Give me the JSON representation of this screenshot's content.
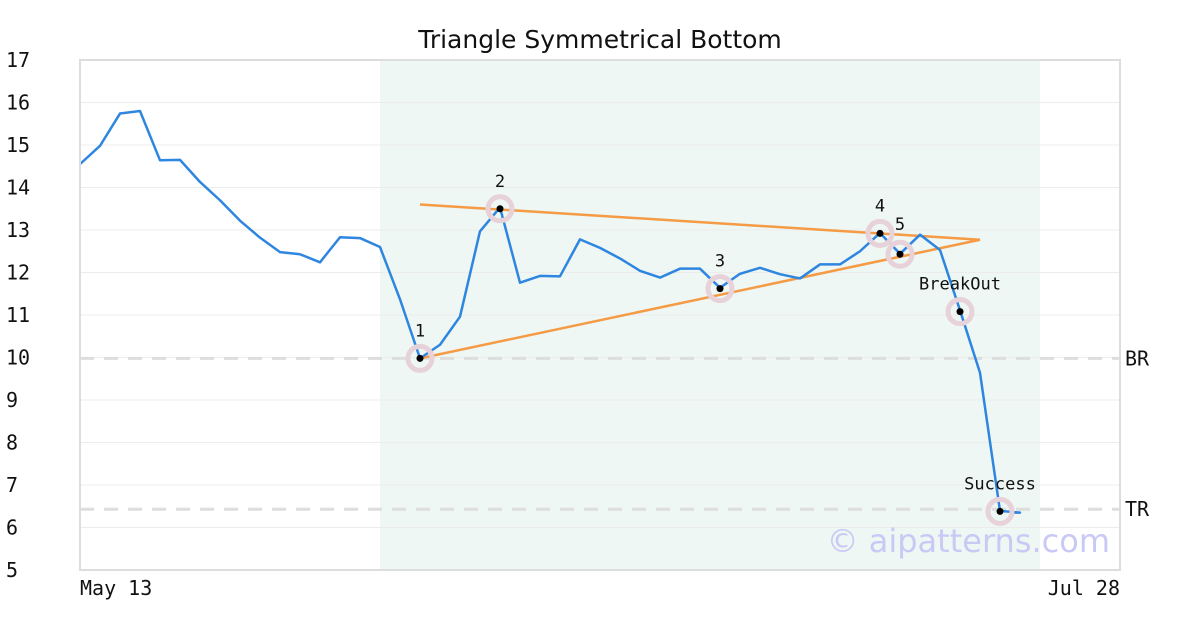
{
  "chart_data": {
    "type": "line",
    "title": "Triangle Symmetrical Bottom",
    "watermark": "© aipatterns.com",
    "xlabel": "",
    "ylabel": "",
    "ylim": [
      5,
      17
    ],
    "yticks": [
      5,
      6,
      7,
      8,
      9,
      10,
      11,
      12,
      13,
      14,
      15,
      16,
      17
    ],
    "x_tick_labels": [
      "May 13",
      "Jul 28"
    ],
    "grid": "horizontal",
    "colors": {
      "price": "#2e86e0",
      "trendline": "#f59a45",
      "pattern_zone": "#eef7f3",
      "level": "#dddddd",
      "marker_ring": "#e7d2d9",
      "marker_dot": "#000000",
      "watermark": "#c9c9f5"
    },
    "series": [
      {
        "values": [
          14.55,
          14.98,
          15.74,
          15.8,
          14.64,
          14.65,
          14.13,
          13.7,
          13.22,
          12.82,
          12.48,
          12.43,
          12.24,
          12.83,
          12.81,
          12.6,
          11.37,
          9.98,
          10.3,
          10.96,
          12.97,
          13.53,
          11.76,
          11.92,
          11.91,
          12.78,
          12.58,
          12.33,
          12.04,
          11.88,
          12.09,
          12.09,
          11.64,
          11.97,
          12.11,
          11.96,
          11.86,
          12.19,
          12.19,
          12.5,
          12.93,
          12.44,
          12.89,
          12.53,
          11.11,
          9.64,
          6.39,
          6.35,
          6.35
        ],
        "x_end_index": 46.6
      }
    ],
    "pattern_zone": {
      "start_index": 15,
      "end_index": 48
    },
    "trendlines": [
      {
        "from": [
          17,
          13.6
        ],
        "to": [
          45,
          12.77
        ]
      },
      {
        "from": [
          17,
          9.98
        ],
        "to": [
          45,
          12.77
        ]
      }
    ],
    "points": [
      {
        "label": "1",
        "x": 17,
        "y": 9.98,
        "label_side": "above"
      },
      {
        "label": "2",
        "x": 21,
        "y": 13.5,
        "label_side": "above"
      },
      {
        "label": "3",
        "x": 32,
        "y": 11.62,
        "label_side": "above"
      },
      {
        "label": "4",
        "x": 40,
        "y": 12.92,
        "label_side": "above"
      },
      {
        "label": "5",
        "x": 41,
        "y": 12.43,
        "label_side": "above-right"
      },
      {
        "label": "BreakOut",
        "x": 44,
        "y": 11.08,
        "label_side": "above"
      },
      {
        "label": "Success",
        "x": 46,
        "y": 6.38,
        "label_side": "above"
      }
    ],
    "levels": [
      {
        "label": "BR",
        "y": 9.98
      },
      {
        "label": "TR",
        "y": 6.43
      }
    ]
  }
}
